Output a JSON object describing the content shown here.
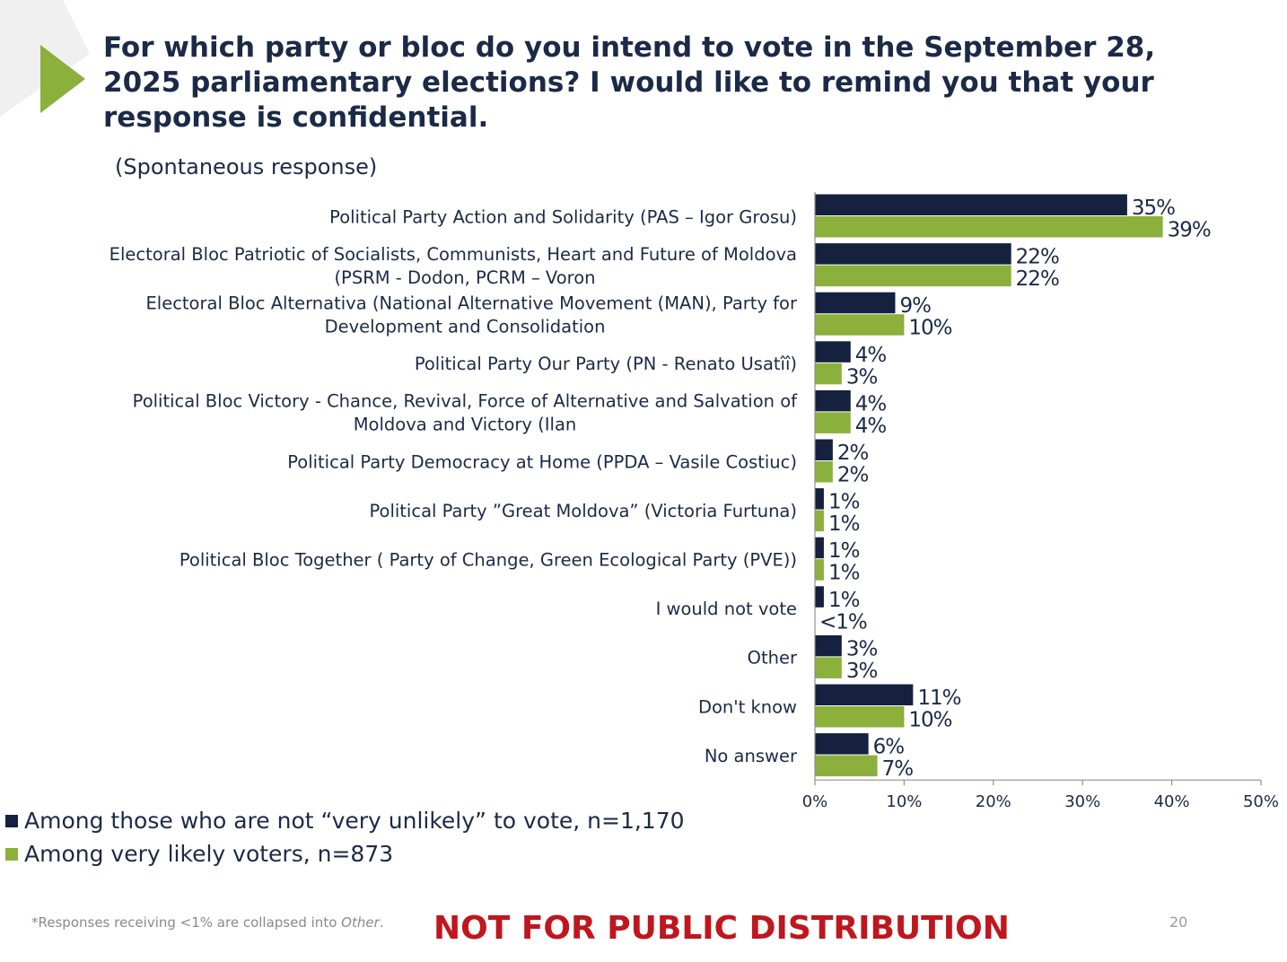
{
  "slide": {
    "title": "For which party or bloc do you intend to vote in the September 28, 2025 parliamentary elections? I would like to remind you that your response is confidential.",
    "subtitle": "(Spontaneous response)",
    "footnote_prefix": "*Responses receiving <1% are collapsed into ",
    "footnote_italic": "Other",
    "footnote_suffix": ".",
    "watermark": "NOT FOR PUBLIC DISTRIBUTION",
    "page_number": "20"
  },
  "colors": {
    "series1": "#15213f",
    "series2": "#8cb03c",
    "text": "#1b2a47",
    "accent_triangle": "#8cb03c",
    "watermark": "#c0161d"
  },
  "chart_data": {
    "type": "bar",
    "orientation": "horizontal",
    "categories": [
      [
        "Political Party Action and Solidarity (PAS – Igor Grosu)"
      ],
      [
        "Electoral Bloc Patriotic of Socialists, Communists, Heart and Future of Moldova",
        "(PSRM - Dodon, PCRM – Voron"
      ],
      [
        "Electoral Bloc Alternativa (National Alternative Movement (MAN), Party for",
        "Development and Consolidation"
      ],
      [
        "Political Party Our Party (PN - Renato Usatîî)"
      ],
      [
        "Political Bloc Victory - Chance, Revival, Force of Alternative and Salvation of",
        "Moldova and Victory (Ilan"
      ],
      [
        "Political Party Democracy at Home (PPDA – Vasile Costiuc)"
      ],
      [
        "Political Party ”Great Moldova” (Victoria Furtuna)"
      ],
      [
        "Political Bloc Together ( Party of Change, Green Ecological Party (PVE))"
      ],
      [
        "I would not vote"
      ],
      [
        "Other"
      ],
      [
        "Don't know"
      ],
      [
        "No answer"
      ]
    ],
    "series": [
      {
        "name": "Among those who are not “very unlikely” to vote, n=1,170",
        "values": [
          35,
          22,
          9,
          4,
          4,
          2,
          1,
          1,
          1,
          3,
          11,
          6
        ],
        "labels": [
          "35%",
          "22%",
          "9%",
          "4%",
          "4%",
          "2%",
          "1%",
          "1%",
          "1%",
          "3%",
          "11%",
          "6%"
        ]
      },
      {
        "name": "Among very likely voters, n=873",
        "values": [
          39,
          22,
          10,
          3,
          4,
          2,
          1,
          1,
          0,
          3,
          10,
          7
        ],
        "labels": [
          "39%",
          "22%",
          "10%",
          "3%",
          "4%",
          "2%",
          "1%",
          "1%",
          "<1%",
          "3%",
          "10%",
          "7%"
        ]
      }
    ],
    "xlim": [
      0,
      50
    ],
    "xticks": [
      "0%",
      "10%",
      "20%",
      "30%",
      "40%",
      "50%"
    ],
    "grid": false,
    "legend": "bottom-left"
  }
}
